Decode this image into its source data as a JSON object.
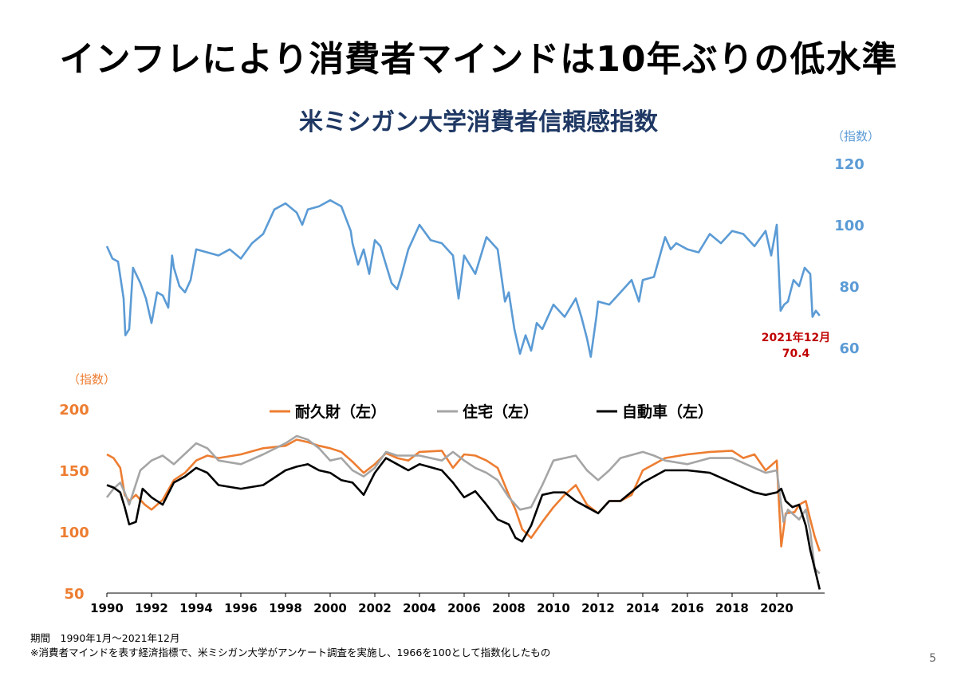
{
  "slide": {
    "title": "インフレにより消費者マインドは10年ぶりの低水準",
    "page_number": "5"
  },
  "notes": {
    "period": "期間　1990年1月～2021年12月",
    "footnote": "※消費者マインドを表す経済指標で、米ミシガン大学がアンケート調査を実施し、1966を100として指数化したもの"
  },
  "chart_data": [
    {
      "type": "line",
      "title": "米ミシガン大学消費者信頼感指数",
      "ylabel": "（指数）",
      "axis_side": "right",
      "ylim": [
        60,
        120
      ],
      "yticks": [
        60,
        80,
        100,
        120
      ],
      "xlim": [
        1990,
        2022
      ],
      "color": "#5b9bd5",
      "annotation": {
        "label": "2021年12月",
        "value": "70.4",
        "color": "#c00000"
      },
      "series": [
        {
          "name": "消費者信頼感指数",
          "x": [
            1990.0,
            1990.25,
            1990.5,
            1990.75,
            1990.83,
            1991.0,
            1991.17,
            1991.5,
            1991.75,
            1992.0,
            1992.25,
            1992.5,
            1992.75,
            1992.92,
            1993.0,
            1993.25,
            1993.5,
            1993.75,
            1994.0,
            1994.5,
            1995.0,
            1995.5,
            1996.0,
            1996.5,
            1997.0,
            1997.5,
            1998.0,
            1998.5,
            1998.75,
            1999.0,
            1999.5,
            2000.0,
            2000.5,
            2000.92,
            2001.0,
            2001.25,
            2001.5,
            2001.75,
            2002.0,
            2002.25,
            2002.5,
            2002.75,
            2003.0,
            2003.17,
            2003.5,
            2004.0,
            2004.5,
            2005.0,
            2005.5,
            2005.75,
            2006.0,
            2006.5,
            2007.0,
            2007.5,
            2007.83,
            2008.0,
            2008.25,
            2008.5,
            2008.75,
            2009.0,
            2009.25,
            2009.5,
            2010.0,
            2010.5,
            2011.0,
            2011.25,
            2011.5,
            2011.67,
            2011.92,
            2012.0,
            2012.5,
            2013.0,
            2013.5,
            2013.83,
            2014.0,
            2014.5,
            2015.0,
            2015.25,
            2015.5,
            2016.0,
            2016.5,
            2017.0,
            2017.5,
            2018.0,
            2018.5,
            2019.0,
            2019.5,
            2019.75,
            2020.0,
            2020.17,
            2020.33,
            2020.5,
            2020.75,
            2021.0,
            2021.25,
            2021.5,
            2021.6,
            2021.75,
            2021.92
          ],
          "values": [
            93,
            89,
            88,
            76,
            64,
            66,
            86,
            81,
            76,
            68,
            78,
            77,
            73,
            90,
            86,
            80,
            78,
            82,
            92,
            91,
            90,
            92,
            89,
            94,
            97,
            105,
            107,
            104,
            100,
            105,
            106,
            108,
            106,
            98,
            94,
            87,
            92,
            84,
            95,
            93,
            87,
            81,
            79,
            83,
            92,
            100,
            95,
            94,
            90,
            76,
            90,
            84,
            96,
            92,
            75,
            78,
            66,
            58,
            64,
            59,
            68,
            66,
            74,
            70,
            76,
            70,
            63,
            57,
            70,
            75,
            74,
            78,
            82,
            75,
            82,
            83,
            96,
            92,
            94,
            92,
            91,
            97,
            94,
            98,
            97,
            93,
            98,
            90,
            100,
            72,
            74,
            75,
            82,
            80,
            86,
            84,
            70,
            72,
            70.4
          ]
        }
      ]
    },
    {
      "type": "line",
      "title": "",
      "ylabel": "（指数）",
      "axis_side": "left",
      "ylim": [
        50,
        200
      ],
      "yticks": [
        50,
        100,
        150,
        200
      ],
      "xlim": [
        1990,
        2022
      ],
      "xticks": [
        "1990",
        "1992",
        "1994",
        "1996",
        "1998",
        "2000",
        "2002",
        "2004",
        "2006",
        "2008",
        "2010",
        "2012",
        "2014",
        "2016",
        "2018",
        "2020"
      ],
      "legend_position": "top-center",
      "series": [
        {
          "name": "耐久財（左）",
          "color": "#ed7d31",
          "x": [
            1990.0,
            1990.3,
            1990.6,
            1990.8,
            1991.0,
            1991.3,
            1991.7,
            1992.0,
            1992.5,
            1993.0,
            1993.5,
            1994.0,
            1994.5,
            1995.0,
            1996.0,
            1997.0,
            1998.0,
            1998.5,
            1999.0,
            1999.5,
            2000.0,
            2000.5,
            2001.0,
            2001.5,
            2002.0,
            2002.5,
            2003.0,
            2003.5,
            2004.0,
            2005.0,
            2005.5,
            2006.0,
            2006.5,
            2007.0,
            2007.5,
            2008.0,
            2008.3,
            2008.6,
            2009.0,
            2009.5,
            2010.0,
            2010.5,
            2011.0,
            2011.5,
            2012.0,
            2012.5,
            2013.0,
            2013.5,
            2014.0,
            2015.0,
            2016.0,
            2017.0,
            2018.0,
            2018.5,
            2019.0,
            2019.5,
            2020.0,
            2020.2,
            2020.4,
            2020.8,
            2021.0,
            2021.3,
            2021.5,
            2021.7,
            2021.92
          ],
          "values": [
            163,
            160,
            152,
            130,
            125,
            130,
            122,
            118,
            126,
            142,
            148,
            158,
            162,
            160,
            163,
            168,
            170,
            175,
            173,
            170,
            168,
            165,
            157,
            148,
            155,
            164,
            160,
            158,
            165,
            166,
            152,
            163,
            162,
            158,
            152,
            130,
            118,
            102,
            95,
            108,
            120,
            130,
            138,
            122,
            115,
            125,
            125,
            130,
            150,
            160,
            163,
            165,
            166,
            160,
            163,
            150,
            158,
            88,
            115,
            116,
            122,
            125,
            110,
            96,
            84
          ]
        },
        {
          "name": "住宅（左）",
          "color": "#a5a5a5",
          "x": [
            1990.0,
            1990.3,
            1990.6,
            1990.8,
            1991.0,
            1991.5,
            1992.0,
            1992.5,
            1993.0,
            1994.0,
            1994.5,
            1995.0,
            1996.0,
            1997.0,
            1998.0,
            1998.5,
            1999.0,
            1999.5,
            2000.0,
            2000.5,
            2001.0,
            2001.5,
            2002.0,
            2002.5,
            2003.0,
            2004.0,
            2005.0,
            2005.5,
            2006.0,
            2006.5,
            2007.0,
            2007.5,
            2008.0,
            2008.5,
            2009.0,
            2009.5,
            2010.0,
            2010.5,
            2011.0,
            2011.5,
            2012.0,
            2012.5,
            2013.0,
            2014.0,
            2014.5,
            2015.0,
            2016.0,
            2017.0,
            2018.0,
            2019.0,
            2019.5,
            2020.0,
            2020.3,
            2020.5,
            2021.0,
            2021.3,
            2021.5,
            2021.7,
            2021.92
          ],
          "values": [
            128,
            135,
            140,
            132,
            122,
            150,
            158,
            162,
            155,
            172,
            168,
            158,
            155,
            163,
            172,
            178,
            175,
            168,
            158,
            160,
            150,
            145,
            152,
            165,
            162,
            162,
            158,
            165,
            158,
            152,
            148,
            142,
            128,
            118,
            120,
            138,
            158,
            160,
            162,
            150,
            142,
            150,
            160,
            165,
            162,
            158,
            155,
            160,
            160,
            152,
            148,
            150,
            108,
            118,
            110,
            118,
            100,
            70,
            66
          ]
        },
        {
          "name": "自動車（左）",
          "color": "#000000",
          "x": [
            1990.0,
            1990.3,
            1990.6,
            1990.8,
            1991.0,
            1991.3,
            1991.6,
            1992.0,
            1992.5,
            1993.0,
            1993.5,
            1994.0,
            1994.5,
            1995.0,
            1996.0,
            1997.0,
            1998.0,
            1998.5,
            1999.0,
            1999.5,
            2000.0,
            2000.5,
            2001.0,
            2001.5,
            2002.0,
            2002.5,
            2003.0,
            2003.5,
            2004.0,
            2005.0,
            2005.5,
            2006.0,
            2006.5,
            2007.0,
            2007.5,
            2008.0,
            2008.3,
            2008.6,
            2009.0,
            2009.5,
            2010.0,
            2010.5,
            2011.0,
            2011.5,
            2012.0,
            2012.5,
            2013.0,
            2014.0,
            2015.0,
            2016.0,
            2017.0,
            2018.0,
            2019.0,
            2019.5,
            2020.0,
            2020.2,
            2020.4,
            2020.7,
            2021.0,
            2021.3,
            2021.5,
            2021.7,
            2021.92
          ],
          "values": [
            138,
            136,
            132,
            120,
            106,
            108,
            135,
            128,
            122,
            140,
            145,
            152,
            148,
            138,
            135,
            138,
            150,
            153,
            155,
            150,
            148,
            142,
            140,
            130,
            148,
            160,
            155,
            150,
            155,
            150,
            140,
            128,
            133,
            122,
            110,
            106,
            95,
            92,
            105,
            130,
            132,
            132,
            125,
            120,
            115,
            125,
            125,
            140,
            150,
            150,
            148,
            140,
            132,
            130,
            132,
            135,
            125,
            120,
            122,
            105,
            85,
            70,
            53
          ]
        }
      ]
    }
  ]
}
